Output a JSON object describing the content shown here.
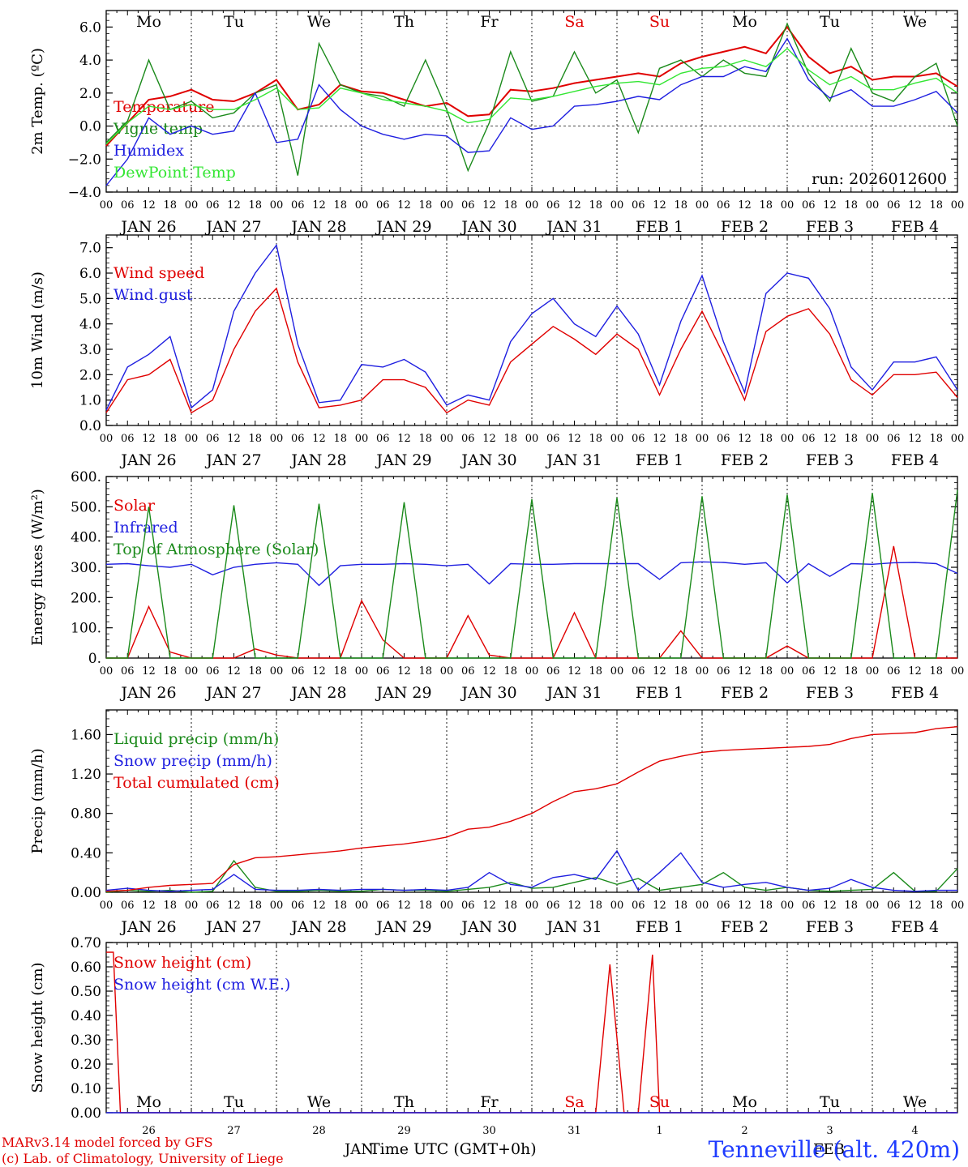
{
  "footer": {
    "credit_line1": "MARv3.14 model forced by GFS",
    "credit_line2": "(c) Lab. of Climatology, University of Liege",
    "xlabel": "Time UTC (GMT+0h)",
    "station": "Tenneville (alt. 420m)",
    "bottom_month_left": "JAN",
    "bottom_month_right": "FEB"
  },
  "colors": {
    "red": "#e00000",
    "blue": "#1f1fe0",
    "green": "#1b8a1b",
    "lightgreen": "#33e633",
    "grid": "#555555"
  },
  "chart_data": [
    {
      "type": "line",
      "id": "temperature",
      "ylabel": "2m Temp. (ºC)",
      "ylim": [
        -4,
        7
      ],
      "yticks": [
        "−4.0",
        "−2.0",
        "0.0",
        "2.0",
        "4.0",
        "6.0"
      ],
      "ytick_values": [
        -4,
        -2,
        0,
        2,
        4,
        6
      ],
      "ref_line": 0,
      "annotation": "run: 2026012600",
      "day_names": [
        "Mo",
        "Tu",
        "We",
        "Th",
        "Fr",
        "Sa",
        "Su",
        "Mo",
        "Tu",
        "We"
      ],
      "hour_labels": [
        "00",
        "06",
        "12",
        "18"
      ],
      "date_labels": [
        "JAN 26",
        "JAN 27",
        "JAN 28",
        "JAN 29",
        "JAN 30",
        "JAN 31",
        "FEB  1",
        "FEB  2",
        "FEB  3",
        "FEB  4"
      ],
      "x": [
        0,
        6,
        12,
        18,
        24,
        30,
        36,
        42,
        48,
        54,
        60,
        66,
        72,
        78,
        84,
        90,
        96,
        102,
        108,
        114,
        120,
        126,
        132,
        138,
        144,
        150,
        156,
        162,
        168,
        174,
        180,
        186,
        192,
        198,
        204,
        210,
        216,
        222,
        228,
        234,
        240
      ],
      "series": [
        {
          "name": "Temperature",
          "color": "red",
          "values": [
            -1.2,
            0.2,
            1.6,
            1.8,
            2.2,
            1.6,
            1.5,
            2.0,
            2.8,
            1.0,
            1.3,
            2.5,
            2.1,
            2.0,
            1.6,
            1.2,
            1.4,
            0.6,
            0.7,
            2.2,
            2.1,
            2.3,
            2.6,
            2.8,
            3.0,
            3.2,
            3.0,
            3.8,
            4.2,
            4.5,
            4.8,
            4.4,
            6.0,
            4.2,
            3.2,
            3.6,
            2.8,
            3.0,
            3.0,
            3.2,
            2.4
          ]
        },
        {
          "name": "Vigne temp",
          "color": "green",
          "values": [
            -1.0,
            0.3,
            4.0,
            1.0,
            1.5,
            0.5,
            0.8,
            2.0,
            2.5,
            -3.0,
            5.0,
            2.5,
            2.0,
            1.8,
            1.2,
            4.0,
            1.0,
            -2.7,
            0.2,
            4.5,
            1.5,
            1.8,
            4.5,
            2.0,
            2.8,
            -0.4,
            3.5,
            4.0,
            3.0,
            4.0,
            3.2,
            3.0,
            6.2,
            3.2,
            1.5,
            4.7,
            2.0,
            1.5,
            3.0,
            3.8,
            0.0
          ]
        },
        {
          "name": "Humidex",
          "color": "blue",
          "values": [
            -3.6,
            -2.0,
            0.5,
            -0.5,
            0.0,
            -0.5,
            -0.3,
            2.0,
            -1.0,
            -0.8,
            2.5,
            1.0,
            0.0,
            -0.5,
            -0.8,
            -0.5,
            -0.6,
            -1.6,
            -1.5,
            0.5,
            -0.2,
            0.0,
            1.2,
            1.3,
            1.5,
            1.8,
            1.6,
            2.5,
            3.0,
            3.0,
            3.6,
            3.3,
            5.3,
            2.8,
            1.7,
            2.2,
            1.2,
            1.2,
            1.6,
            2.1,
            0.8
          ]
        },
        {
          "name": "DewPoint Temp",
          "color": "lightgreen",
          "values": [
            -1.1,
            0.2,
            1.2,
            1.0,
            1.3,
            1.0,
            1.0,
            1.6,
            2.3,
            1.0,
            1.1,
            2.3,
            2.0,
            1.6,
            1.4,
            1.2,
            0.9,
            0.2,
            0.4,
            1.7,
            1.6,
            1.8,
            2.1,
            2.4,
            2.6,
            2.7,
            2.5,
            3.2,
            3.5,
            3.6,
            4.0,
            3.6,
            4.7,
            3.4,
            2.5,
            3.0,
            2.2,
            2.2,
            2.6,
            2.9,
            2.0
          ]
        }
      ]
    },
    {
      "type": "line",
      "id": "wind",
      "ylabel": "10m Wind (m/s)",
      "ylim": [
        0,
        7.5
      ],
      "yticks": [
        "0.0",
        "1.0",
        "2.0",
        "3.0",
        "4.0",
        "5.0",
        "6.0",
        "7.0"
      ],
      "ytick_values": [
        0,
        1,
        2,
        3,
        4,
        5,
        6,
        7
      ],
      "ref_line": 5,
      "hour_labels": [
        "00",
        "06",
        "12",
        "18"
      ],
      "date_labels": [
        "JAN 26",
        "JAN 27",
        "JAN 28",
        "JAN 29",
        "JAN 30",
        "JAN 31",
        "FEB  1",
        "FEB  2",
        "FEB  3",
        "FEB  4"
      ],
      "x": [
        0,
        6,
        12,
        18,
        24,
        30,
        36,
        42,
        48,
        54,
        60,
        66,
        72,
        78,
        84,
        90,
        96,
        102,
        108,
        114,
        120,
        126,
        132,
        138,
        144,
        150,
        156,
        162,
        168,
        174,
        180,
        186,
        192,
        198,
        204,
        210,
        216,
        222,
        228,
        234,
        240
      ],
      "series": [
        {
          "name": "Wind speed",
          "color": "red",
          "values": [
            0.5,
            1.8,
            2.0,
            2.6,
            0.5,
            1.0,
            3.0,
            4.5,
            5.4,
            2.5,
            0.7,
            0.8,
            1.0,
            1.8,
            1.8,
            1.5,
            0.5,
            1.0,
            0.8,
            2.5,
            3.2,
            3.9,
            3.4,
            2.8,
            3.6,
            3.0,
            1.2,
            3.0,
            4.5,
            2.8,
            1.0,
            3.7,
            4.3,
            4.6,
            3.6,
            1.8,
            1.2,
            2.0,
            2.0,
            2.1,
            1.1
          ]
        },
        {
          "name": "Wind gust",
          "color": "blue",
          "values": [
            0.6,
            2.3,
            2.8,
            3.5,
            0.7,
            1.4,
            4.5,
            6.0,
            7.1,
            3.2,
            0.9,
            1.0,
            2.4,
            2.3,
            2.6,
            2.1,
            0.8,
            1.2,
            1.0,
            3.3,
            4.4,
            5.0,
            4.0,
            3.5,
            4.7,
            3.6,
            1.6,
            4.1,
            5.9,
            3.3,
            1.3,
            5.2,
            6.0,
            5.8,
            4.6,
            2.3,
            1.4,
            2.5,
            2.5,
            2.7,
            1.4
          ]
        }
      ]
    },
    {
      "type": "line",
      "id": "energy",
      "ylabel": "Energy fluxes (W/m²)",
      "ylim": [
        0,
        600
      ],
      "yticks": [
        "0.",
        "100.",
        "200.",
        "300.",
        "400.",
        "500.",
        "600."
      ],
      "ytick_values": [
        0,
        100,
        200,
        300,
        400,
        500,
        600
      ],
      "hour_labels": [
        "00",
        "06",
        "12",
        "18"
      ],
      "date_labels": [
        "JAN 26",
        "JAN 27",
        "JAN 28",
        "JAN 29",
        "JAN 30",
        "JAN 31",
        "FEB  1",
        "FEB  2",
        "FEB  3",
        "FEB  4"
      ],
      "x": [
        0,
        6,
        12,
        18,
        24,
        30,
        36,
        42,
        48,
        54,
        60,
        66,
        72,
        78,
        84,
        90,
        96,
        102,
        108,
        114,
        120,
        126,
        132,
        138,
        144,
        150,
        156,
        162,
        168,
        174,
        180,
        186,
        192,
        198,
        204,
        210,
        216,
        222,
        228,
        234,
        240
      ],
      "series": [
        {
          "name": "Solar",
          "color": "red",
          "values": [
            0,
            0,
            170,
            20,
            0,
            0,
            0,
            30,
            10,
            0,
            0,
            0,
            190,
            60,
            0,
            0,
            0,
            140,
            10,
            0,
            0,
            0,
            150,
            0,
            0,
            0,
            0,
            90,
            0,
            0,
            0,
            0,
            40,
            0,
            0,
            0,
            0,
            370,
            0,
            0,
            0
          ]
        },
        {
          "name": "Infrared",
          "color": "blue",
          "values": [
            310,
            312,
            305,
            300,
            310,
            275,
            300,
            310,
            315,
            310,
            240,
            305,
            310,
            310,
            312,
            310,
            305,
            310,
            245,
            312,
            310,
            310,
            312,
            312,
            312,
            312,
            260,
            315,
            318,
            316,
            310,
            315,
            248,
            312,
            270,
            312,
            310,
            315,
            316,
            312,
            280
          ]
        },
        {
          "name": "Top of Atmosphere (Solar)",
          "color": "green",
          "values": [
            0,
            0,
            500,
            0,
            0,
            0,
            505,
            0,
            0,
            0,
            510,
            0,
            0,
            0,
            515,
            0,
            0,
            0,
            0,
            0,
            525,
            0,
            0,
            0,
            530,
            0,
            0,
            0,
            535,
            0,
            0,
            0,
            540,
            0,
            0,
            0,
            545,
            0,
            0,
            0,
            555
          ]
        }
      ]
    },
    {
      "type": "line",
      "id": "precip",
      "ylabel": "Precip (mm/h)",
      "ylim": [
        0,
        1.85
      ],
      "yticks": [
        "0.00",
        "0.40",
        "0.80",
        "1.20",
        "1.60"
      ],
      "ytick_values": [
        0,
        0.4,
        0.8,
        1.2,
        1.6
      ],
      "hour_labels": [
        "00",
        "06",
        "12",
        "18"
      ],
      "date_labels": [
        "JAN 26",
        "JAN 27",
        "JAN 28",
        "JAN 29",
        "JAN 30",
        "JAN 31",
        "FEB  1",
        "FEB  2",
        "FEB  3",
        "FEB  4"
      ],
      "x": [
        0,
        6,
        12,
        18,
        24,
        30,
        36,
        42,
        48,
        54,
        60,
        66,
        72,
        78,
        84,
        90,
        96,
        102,
        108,
        114,
        120,
        126,
        132,
        138,
        144,
        150,
        156,
        162,
        168,
        174,
        180,
        186,
        192,
        198,
        204,
        210,
        216,
        222,
        228,
        234,
        240
      ],
      "series": [
        {
          "name": "Liquid precip (mm/h)",
          "color": "green",
          "values": [
            0,
            0.02,
            0.01,
            0.02,
            0,
            0.01,
            0.32,
            0.05,
            0.01,
            0.01,
            0.02,
            0.01,
            0.01,
            0.03,
            0.02,
            0.02,
            0.01,
            0.03,
            0.05,
            0.1,
            0.04,
            0.05,
            0.1,
            0.15,
            0.08,
            0.14,
            0.02,
            0.05,
            0.08,
            0.2,
            0.05,
            0.02,
            0.05,
            0.02,
            0.01,
            0.02,
            0.03,
            0.2,
            0.01,
            0.01,
            0.24
          ]
        },
        {
          "name": "Snow precip (mm/h)",
          "color": "blue",
          "values": [
            0.02,
            0.04,
            0.02,
            0.01,
            0.02,
            0.03,
            0.18,
            0.03,
            0.02,
            0.02,
            0.03,
            0.02,
            0.03,
            0.03,
            0.02,
            0.03,
            0.02,
            0.05,
            0.2,
            0.08,
            0.05,
            0.15,
            0.18,
            0.13,
            0.42,
            0.02,
            0.2,
            0.4,
            0.1,
            0.05,
            0.08,
            0.1,
            0.05,
            0.02,
            0.04,
            0.13,
            0.05,
            0.02,
            0.01,
            0.02,
            0.02
          ]
        },
        {
          "name": "Total cumulated (cm)",
          "color": "red",
          "values": [
            0.01,
            0.02,
            0.05,
            0.07,
            0.08,
            0.09,
            0.28,
            0.35,
            0.36,
            0.38,
            0.4,
            0.42,
            0.45,
            0.47,
            0.49,
            0.52,
            0.56,
            0.64,
            0.66,
            0.72,
            0.8,
            0.92,
            1.02,
            1.05,
            1.1,
            1.22,
            1.33,
            1.38,
            1.42,
            1.44,
            1.45,
            1.46,
            1.47,
            1.48,
            1.5,
            1.56,
            1.6,
            1.61,
            1.62,
            1.66,
            1.68
          ]
        }
      ]
    },
    {
      "type": "line",
      "id": "snow",
      "ylabel": "Snow height (cm)",
      "ylim": [
        0,
        0.7
      ],
      "yticks": [
        "0.00",
        "0.10",
        "0.20",
        "0.30",
        "0.40",
        "0.50",
        "0.60",
        "0.70"
      ],
      "ytick_values": [
        0,
        0.1,
        0.2,
        0.3,
        0.4,
        0.5,
        0.6,
        0.7
      ],
      "day_names": [
        "Mo",
        "Tu",
        "We",
        "Th",
        "Fr",
        "Sa",
        "Su",
        "Mo",
        "Tu",
        "We"
      ],
      "day_numbers": [
        "26",
        "27",
        "28",
        "29",
        "30",
        "31",
        "1",
        "2",
        "3",
        "4"
      ],
      "x": [
        0,
        2,
        4,
        6,
        138,
        142,
        146,
        150,
        154,
        156,
        240
      ],
      "series": [
        {
          "name": "Snow height (cm)",
          "color": "red",
          "values": [
            0.66,
            0.66,
            0.0,
            0.0,
            0.0,
            0.61,
            0.0,
            0.0,
            0.65,
            0.0,
            0.0
          ]
        },
        {
          "name": "Snow height (cm W.E.)",
          "color": "blue",
          "values": [
            0,
            0,
            0,
            0,
            0,
            0,
            0,
            0,
            0,
            0,
            0
          ]
        }
      ]
    }
  ]
}
